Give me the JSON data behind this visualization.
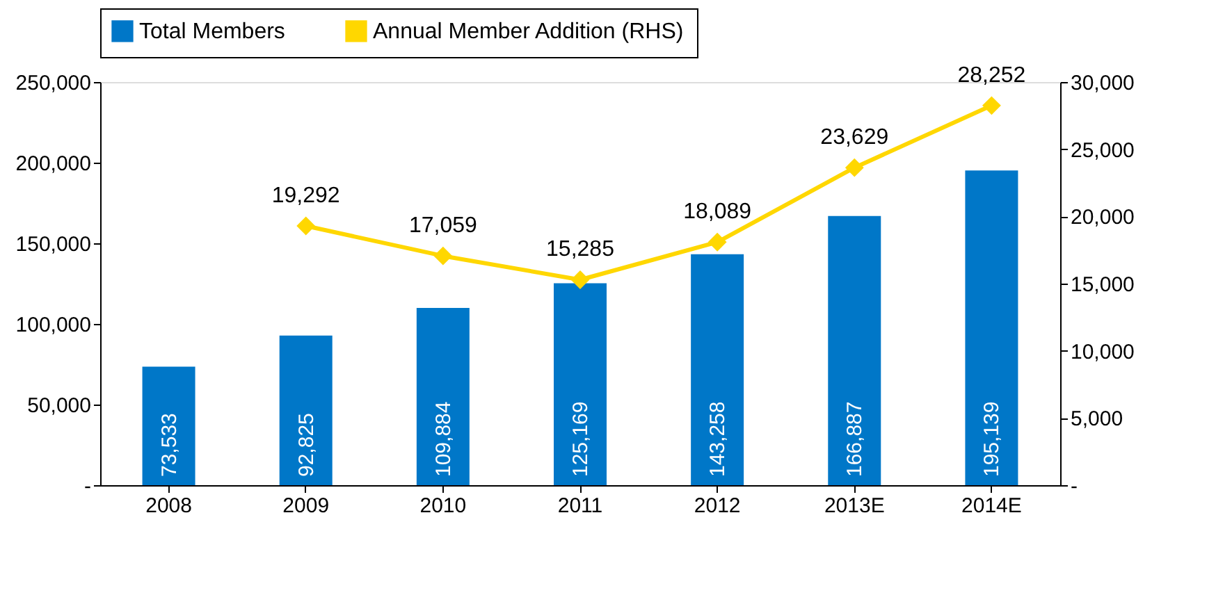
{
  "chart_data": {
    "type": "bar",
    "categories": [
      "2008",
      "2009",
      "2010",
      "2011",
      "2012",
      "2013E",
      "2014E"
    ],
    "series": [
      {
        "name": "Total Members",
        "color": "#0077c8",
        "values": [
          73533,
          92825,
          109884,
          125169,
          143258,
          166887,
          195139
        ],
        "value_labels": [
          "73,533",
          "92,825",
          "109,884",
          "125,169",
          "143,258",
          "166,887",
          "195,139"
        ]
      },
      {
        "name": "Annual Member Addition (RHS)",
        "type": "line",
        "axis": "y2",
        "color": "#ffd700",
        "marker": "diamond",
        "values": [
          null,
          19292,
          17059,
          15285,
          18089,
          23629,
          28252
        ],
        "value_labels": [
          null,
          "19,292",
          "17,059",
          "15,285",
          "18,089",
          "23,629",
          "28,252"
        ]
      }
    ],
    "ylim": [
      0,
      250000
    ],
    "yticks": [
      {
        "value": 0,
        "label": "-"
      },
      {
        "value": 50000,
        "label": "50,000"
      },
      {
        "value": 100000,
        "label": "100,000"
      },
      {
        "value": 150000,
        "label": "150,000"
      },
      {
        "value": 200000,
        "label": "200,000"
      },
      {
        "value": 250000,
        "label": "250,000"
      }
    ],
    "y2lim": [
      0,
      30000
    ],
    "y2ticks": [
      {
        "value": 0,
        "label": "-"
      },
      {
        "value": 5000,
        "label": "5,000"
      },
      {
        "value": 10000,
        "label": "10,000"
      },
      {
        "value": 15000,
        "label": "15,000"
      },
      {
        "value": 20000,
        "label": "20,000"
      },
      {
        "value": 25000,
        "label": "25,000"
      },
      {
        "value": 30000,
        "label": "30,000"
      }
    ],
    "grid": false,
    "legend": "top"
  }
}
